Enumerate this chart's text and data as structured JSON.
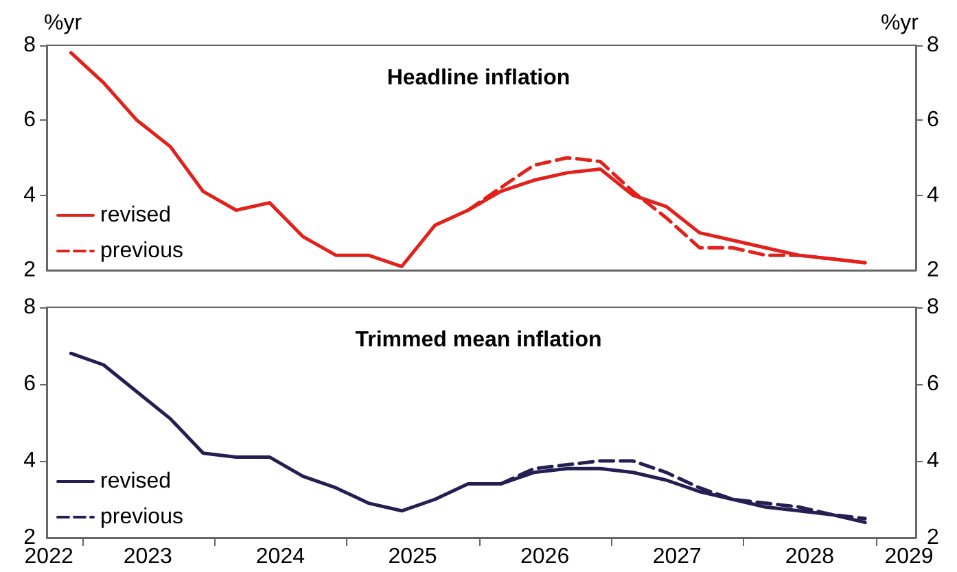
{
  "chart_data": [
    {
      "type": "line",
      "title": "Headline inflation",
      "ylabel": "%yr",
      "y2label": "%yr",
      "legend": "bottom left",
      "marker": "none",
      "grid": false,
      "tick_labels": "y",
      "xlim": [
        "2022-09-25",
        "2029-04-20"
      ],
      "ylim": [
        2,
        8
      ],
      "yticks": [
        2,
        4,
        6,
        8
      ],
      "y2lim": [
        2,
        8
      ],
      "y2ticks": [
        2,
        4,
        6,
        8
      ],
      "series": [
        {
          "name": "revised",
          "color": "#e3211b",
          "line_style": "solid",
          "x": [
            "2022-12",
            "2023-03",
            "2023-06",
            "2023-09",
            "2023-12",
            "2024-03",
            "2024-06",
            "2024-09",
            "2024-12",
            "2025-03",
            "2025-06",
            "2025-09",
            "2025-12",
            "2026-03",
            "2026-06",
            "2026-09",
            "2026-12",
            "2027-03",
            "2027-06",
            "2027-09",
            "2027-12",
            "2028-03",
            "2028-06",
            "2028-09",
            "2028-12"
          ],
          "values": [
            7.8,
            7.0,
            6.0,
            5.3,
            4.1,
            3.6,
            3.8,
            2.9,
            2.4,
            2.4,
            2.1,
            3.2,
            3.6,
            4.1,
            4.4,
            4.6,
            4.7,
            4.0,
            3.7,
            3.0,
            2.8,
            2.6,
            2.4,
            2.3,
            2.2
          ]
        },
        {
          "name": "previous",
          "color": "#e3211b",
          "line_style": "dashed",
          "x": [
            "2025-12",
            "2026-03",
            "2026-06",
            "2026-09",
            "2026-12",
            "2027-03",
            "2027-06",
            "2027-09",
            "2027-12",
            "2028-03",
            "2028-06",
            "2028-09",
            "2028-12"
          ],
          "values": [
            3.6,
            4.2,
            4.8,
            5.0,
            4.9,
            4.1,
            3.4,
            2.6,
            2.6,
            2.4,
            2.4,
            2.3,
            2.2
          ]
        }
      ]
    },
    {
      "type": "line",
      "title": "Trimmed mean inflation",
      "legend": "bottom left",
      "marker": "none",
      "grid": false,
      "xlim": [
        "2022-09-25",
        "2029-04-20"
      ],
      "xticks": [
        {
          "value": "2022-10-01",
          "label": "2022"
        },
        {
          "value": "2023-01-01",
          "label": null
        },
        {
          "value": "2023-07-01",
          "label": "2023"
        },
        {
          "value": "2024-01-01",
          "label": null
        },
        {
          "value": "2024-07-01",
          "label": "2024"
        },
        {
          "value": "2025-01-01",
          "label": null
        },
        {
          "value": "2025-07-01",
          "label": "2025"
        },
        {
          "value": "2026-01-01",
          "label": null
        },
        {
          "value": "2026-07-01",
          "label": "2026"
        },
        {
          "value": "2027-01-01",
          "label": null
        },
        {
          "value": "2027-07-01",
          "label": "2027"
        },
        {
          "value": "2028-01-01",
          "label": null
        },
        {
          "value": "2028-07-01",
          "label": "2028"
        },
        {
          "value": "2029-01-01",
          "label": null
        },
        {
          "value": "2029-04-01",
          "label": "2029"
        }
      ],
      "ylim": [
        2,
        8
      ],
      "yticks": [
        2,
        4,
        6,
        8
      ],
      "y2lim": [
        2,
        8
      ],
      "y2ticks": [
        2,
        4,
        6,
        8
      ],
      "series": [
        {
          "name": "revised",
          "color": "#231f52",
          "line_style": "solid",
          "x": [
            "2022-12",
            "2023-03",
            "2023-06",
            "2023-09",
            "2023-12",
            "2024-03",
            "2024-06",
            "2024-09",
            "2024-12",
            "2025-03",
            "2025-06",
            "2025-09",
            "2025-12",
            "2026-03",
            "2026-06",
            "2026-09",
            "2026-12",
            "2027-03",
            "2027-06",
            "2027-09",
            "2027-12",
            "2028-03",
            "2028-06",
            "2028-09",
            "2028-12"
          ],
          "values": [
            6.8,
            6.5,
            5.8,
            5.1,
            4.2,
            4.1,
            4.1,
            3.6,
            3.3,
            2.9,
            2.7,
            3.0,
            3.4,
            3.4,
            3.7,
            3.8,
            3.8,
            3.7,
            3.5,
            3.2,
            3.0,
            2.8,
            2.7,
            2.6,
            2.4
          ]
        },
        {
          "name": "previous",
          "color": "#231f52",
          "line_style": "dashed",
          "x": [
            "2026-03",
            "2026-06",
            "2026-09",
            "2026-12",
            "2027-03",
            "2027-06",
            "2027-09",
            "2027-12",
            "2028-03",
            "2028-06",
            "2028-09",
            "2028-12"
          ],
          "values": [
            3.4,
            3.8,
            3.9,
            4.0,
            4.0,
            3.7,
            3.3,
            3.0,
            2.9,
            2.8,
            2.6,
            2.5
          ]
        }
      ]
    }
  ]
}
